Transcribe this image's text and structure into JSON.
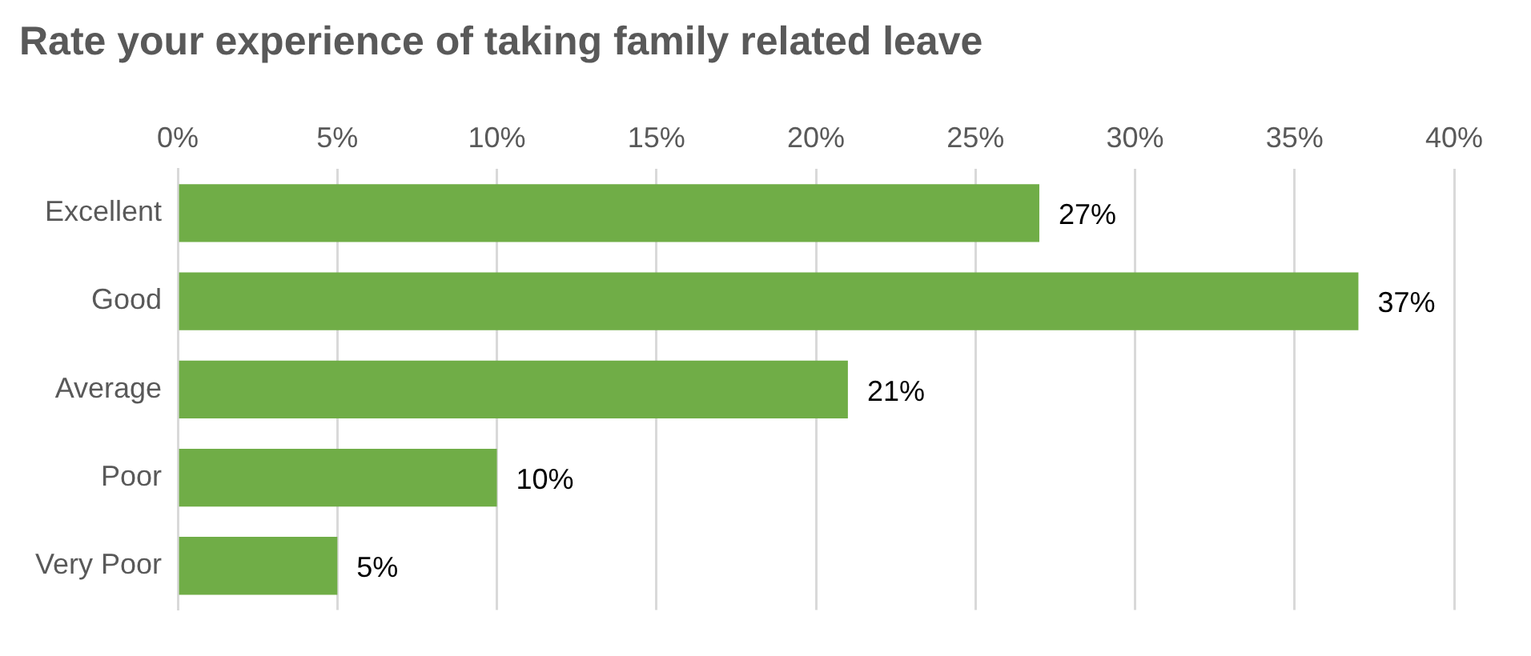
{
  "chart_data": {
    "type": "bar",
    "orientation": "horizontal",
    "title": "Rate your experience of taking family related leave",
    "categories": [
      "Excellent",
      "Good",
      "Average",
      "Poor",
      "Very Poor"
    ],
    "values": [
      27,
      37,
      21,
      10,
      5
    ],
    "value_labels": [
      "27%",
      "37%",
      "21%",
      "10%",
      "5%"
    ],
    "color": "#70ad47",
    "xlim": [
      0,
      40
    ],
    "xticks": [
      {
        "value": 0,
        "label": "0%"
      },
      {
        "value": 5,
        "label": "5%"
      },
      {
        "value": 10,
        "label": "10%"
      },
      {
        "value": 15,
        "label": "15%"
      },
      {
        "value": 20,
        "label": "20%"
      },
      {
        "value": 25,
        "label": "25%"
      },
      {
        "value": 30,
        "label": "30%"
      },
      {
        "value": 35,
        "label": "35%"
      },
      {
        "value": 40,
        "label": "40%"
      }
    ],
    "grid": "x",
    "legend": false
  }
}
